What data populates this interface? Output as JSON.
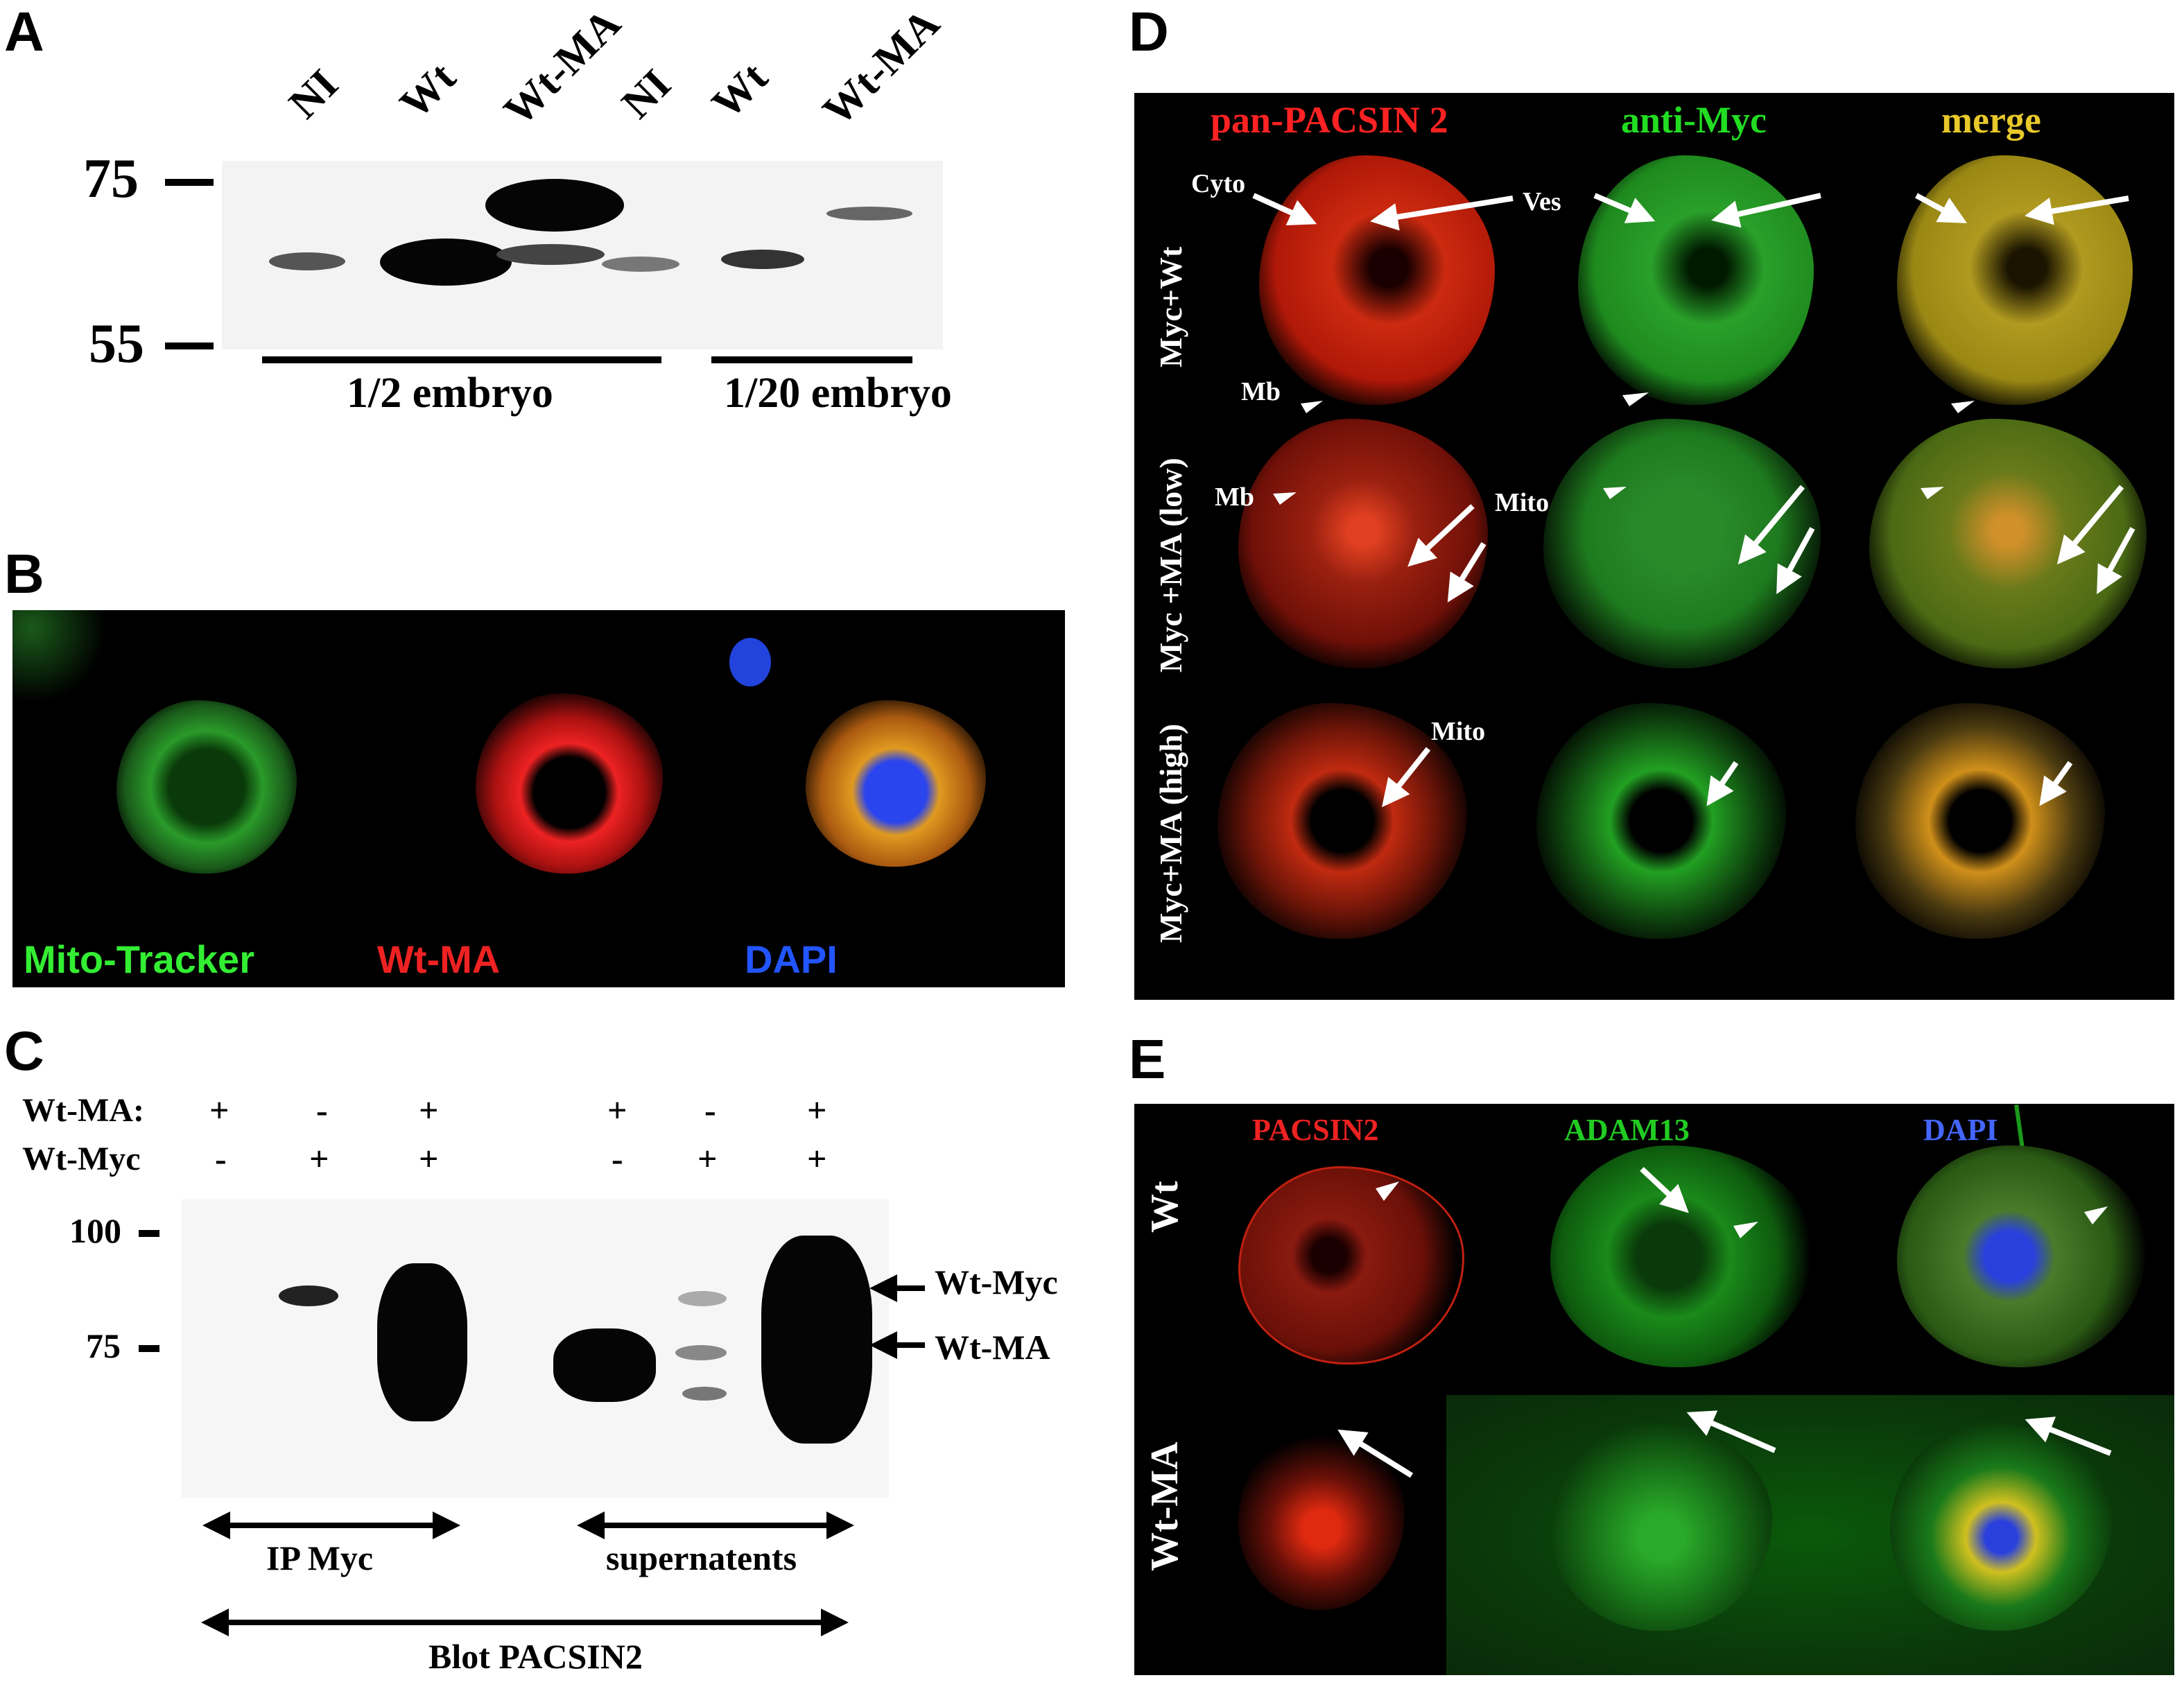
{
  "panel_a": {
    "letter": "A",
    "lanes": [
      "NI",
      "Wt",
      "Wt-MA",
      "NI",
      "Wt",
      "Wt-MA"
    ],
    "markers": [
      "75",
      "55"
    ],
    "groups": [
      "1/2 embryo",
      "1/20 embryo"
    ]
  },
  "panel_b": {
    "letter": "B",
    "channels": [
      "Mito-Tracker",
      "Wt-MA",
      "DAPI"
    ],
    "colors": {
      "mito": "#33ee33",
      "wtma": "#ee2222",
      "dapi": "#2255ff"
    }
  },
  "panel_c": {
    "letter": "C",
    "rows": [
      {
        "label": "Wt-MA:",
        "signs": [
          "+",
          "-",
          "+",
          "+",
          "-",
          "+"
        ]
      },
      {
        "label": "Wt-Myc",
        "signs": [
          "-",
          "+",
          "+",
          "-",
          "+",
          "+"
        ]
      }
    ],
    "markers": [
      "100",
      "75"
    ],
    "band_labels": [
      "Wt-Myc",
      "Wt-MA"
    ],
    "groups": [
      "IP Myc",
      "supernatents"
    ],
    "blot": "Blot PACSIN2"
  },
  "panel_d": {
    "letter": "D",
    "columns": [
      "pan-PACSIN 2",
      "anti-Myc",
      "merge"
    ],
    "column_colors": [
      "#ff2222",
      "#22dd22",
      "#e8c82a"
    ],
    "rows": [
      "Myc+Wt",
      "Myc +MA (low)",
      "Myc+MA (high)"
    ],
    "annotations": {
      "cyto": "Cyto",
      "ves": "Ves",
      "mb1": "Mb",
      "mb2": "Mb",
      "mito1": "Mito",
      "mito2": "Mito"
    }
  },
  "panel_e": {
    "letter": "E",
    "columns": [
      "PACSIN2",
      "ADAM13",
      "DAPI"
    ],
    "column_colors": [
      "#ee2222",
      "#22cc22",
      "#4466ff"
    ],
    "rows": [
      "Wt",
      "Wt-MA"
    ]
  }
}
